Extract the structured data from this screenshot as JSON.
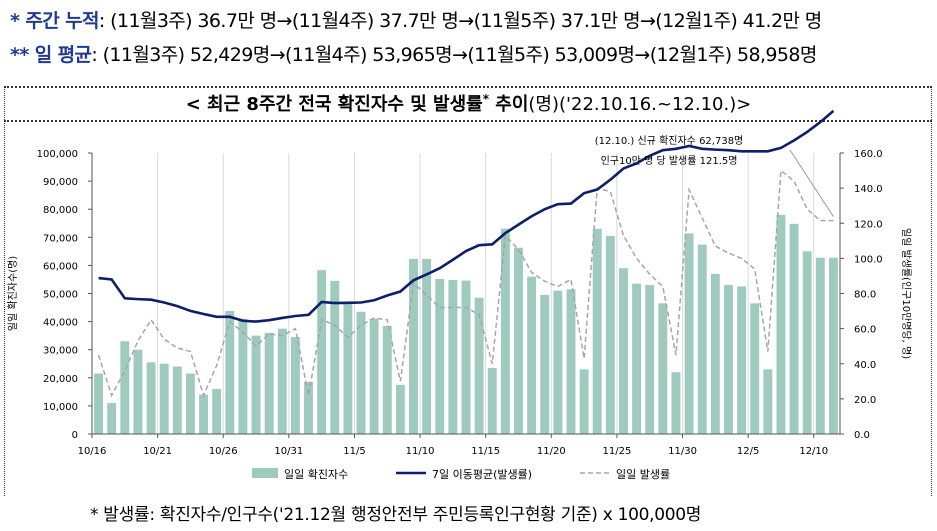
{
  "headline": {
    "weekly": {
      "marker": "* ",
      "label": "주간 누적",
      "text": ": (11월3주) 36.7만 명→(11월4주) 37.7만 명→(11월5주) 37.1만 명→(12월1주) 41.2만 명"
    },
    "daily": {
      "marker": "** ",
      "label": "일 평균",
      "text": ": (11월3주) 52,429명→(11월4주) 53,965명→(11월5주) 53,009명→(12월1주) 58,958명"
    }
  },
  "chart_data": {
    "type": "bar",
    "title": "< 최근 8주간 전국 확진자수 및 발생률",
    "title_sup": "*",
    "title_mid": " 추이",
    "title_unit": "(명)",
    "title_end": "('22.10.16.~12.10.)>",
    "ylabel": "일일 확진자수(명)",
    "y2label": "일일 발생률(인구10만명당, 명)",
    "ylim": [
      0,
      100000
    ],
    "y2lim": [
      0,
      160
    ],
    "yticks": [
      "0",
      "10,000",
      "20,000",
      "30,000",
      "40,000",
      "50,000",
      "60,000",
      "70,000",
      "80,000",
      "90,000",
      "100,000"
    ],
    "y2ticks": [
      "0.0",
      "20.0",
      "40.0",
      "60.0",
      "80.0",
      "100.0",
      "120.0",
      "140.0",
      "160.0"
    ],
    "xtick_labels": [
      "10/16",
      "10/21",
      "10/26",
      "10/31",
      "11/5",
      "11/10",
      "11/15",
      "11/20",
      "11/25",
      "11/30",
      "12/5",
      "12/10"
    ],
    "xtick_index": [
      0,
      5,
      10,
      15,
      20,
      25,
      30,
      35,
      40,
      45,
      50,
      55
    ],
    "daily_cases": [
      21500,
      11000,
      33000,
      30000,
      25500,
      25000,
      24000,
      21500,
      14000,
      16000,
      43800,
      41000,
      35000,
      36000,
      37500,
      34500,
      18500,
      58300,
      54500,
      47000,
      43500,
      41000,
      38500,
      17500,
      62300,
      62300,
      55200,
      54800,
      54600,
      48500,
      23500,
      73100,
      66300,
      56000,
      49500,
      51000,
      51500,
      23000,
      73000,
      70500,
      59000,
      53500,
      53000,
      46500,
      22000,
      71400,
      67400,
      57000,
      53000,
      52500,
      46500,
      23000,
      78000,
      74800,
      65000,
      62738,
      62738
    ],
    "moving_avg": [
      55500,
      55000,
      48300,
      48000,
      47800,
      46800,
      45500,
      43800,
      42700,
      41700,
      41700,
      40300,
      40000,
      40500,
      41300,
      42000,
      42400,
      47000,
      46600,
      46700,
      46800,
      47600,
      49300,
      50700,
      54700,
      56800,
      59000,
      62000,
      65100,
      67200,
      67500,
      71500,
      74500,
      77500,
      80000,
      81800,
      82000,
      85700,
      87000,
      90500,
      94500,
      96300,
      99000,
      101000,
      101500,
      102500,
      101500,
      101200,
      101000,
      100600,
      100600,
      100600,
      101800,
      104500,
      107500,
      111000,
      115000
    ],
    "daily_rate": [
      45,
      22,
      36,
      53,
      65,
      54,
      49,
      47,
      22,
      39,
      64,
      58,
      50,
      57,
      56,
      60,
      22,
      65,
      62,
      55,
      62,
      66,
      65,
      30,
      86,
      79,
      72,
      72,
      72,
      68,
      40,
      113,
      105,
      92,
      87,
      84,
      88,
      43,
      140,
      138,
      113,
      100,
      91,
      84,
      45,
      139,
      123,
      107,
      103,
      100,
      94,
      47,
      150,
      144,
      128,
      121.5,
      121.5
    ],
    "legend": [
      "일일 확진자수",
      "7일 이동평균(발생률)",
      "일일 발생률"
    ],
    "legend_position": "bottom",
    "annotation": [
      "(12.10.) 신규 확진자수 62,738명",
      "인구10만 명 당 발생률 121.5명"
    ],
    "colors": {
      "bar": "#9ecbbd",
      "avg": "#0d1f6b",
      "rate": "#a6a6a6"
    }
  },
  "footnote": "* 발생률: 확진자수/인구수('21.12월 행정안전부 주민등록인구현황 기준) x 100,000명"
}
